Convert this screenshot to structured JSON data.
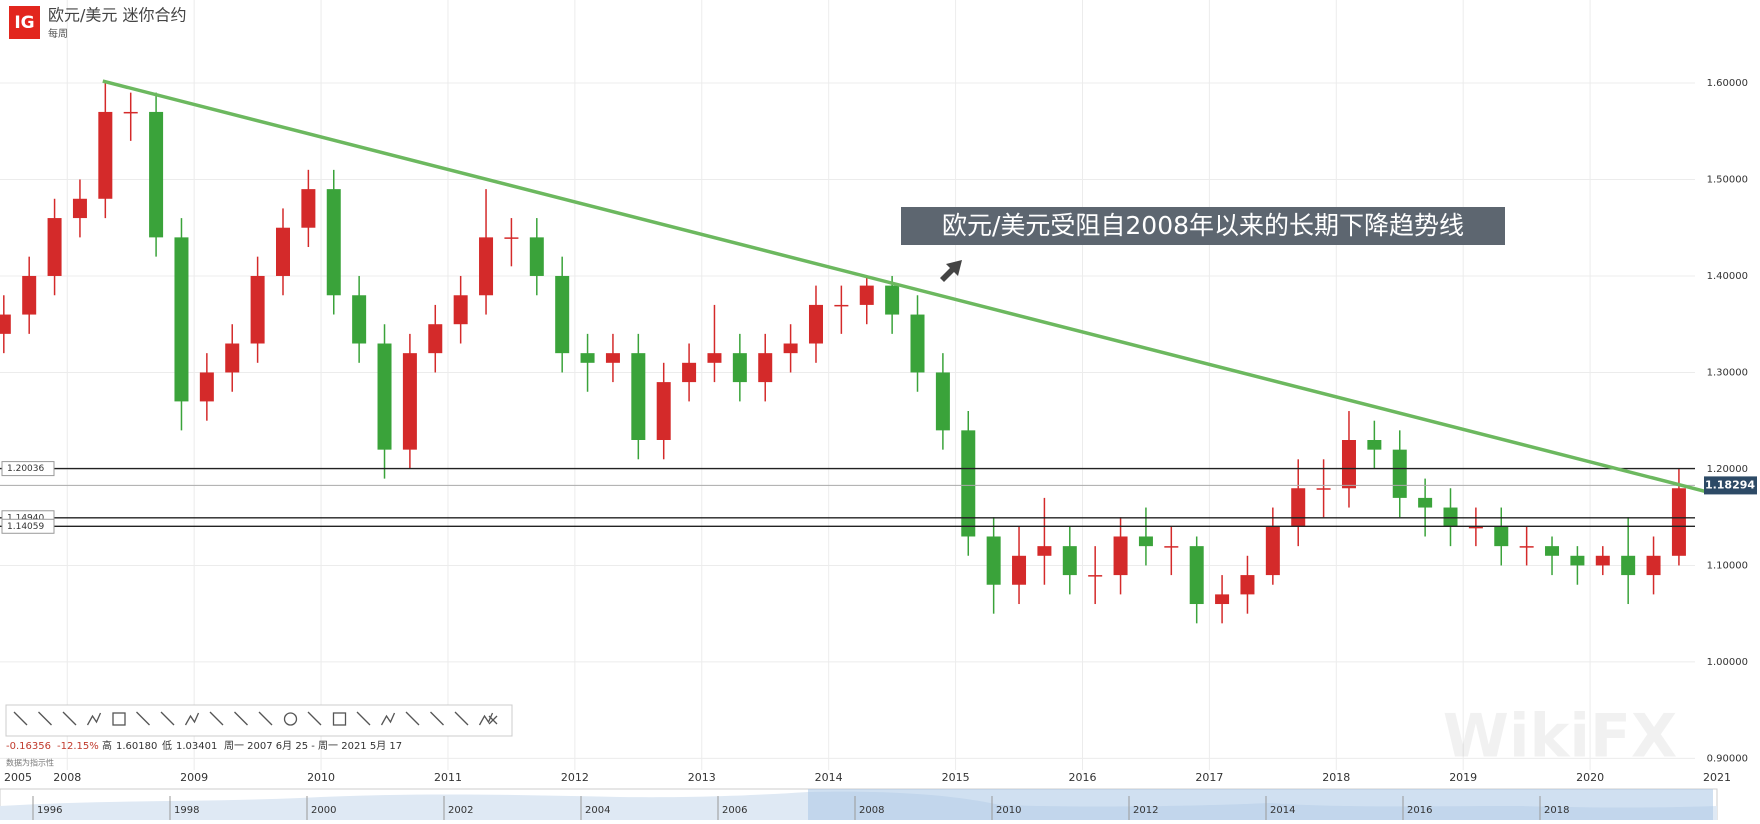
{
  "header": {
    "logo": "IG",
    "title": "欧元/美元 迷你合约",
    "interval": "每周"
  },
  "chart_data": {
    "type": "candlestick",
    "x": [
      2007.5,
      2007.7,
      2007.9,
      2008.1,
      2008.3,
      2008.5,
      2008.7,
      2008.9,
      2009.1,
      2009.3,
      2009.5,
      2009.7,
      2009.9,
      2010.1,
      2010.3,
      2010.5,
      2010.7,
      2010.9,
      2011.1,
      2011.3,
      2011.5,
      2011.7,
      2011.9,
      2012.1,
      2012.3,
      2012.5,
      2012.7,
      2012.9,
      2013.1,
      2013.3,
      2013.5,
      2013.7,
      2013.9,
      2014.1,
      2014.3,
      2014.5,
      2014.7,
      2014.9,
      2015.1,
      2015.3,
      2015.5,
      2015.7,
      2015.9,
      2016.1,
      2016.3,
      2016.5,
      2016.7,
      2016.9,
      2017.1,
      2017.3,
      2017.5,
      2017.7,
      2017.9,
      2018.1,
      2018.3,
      2018.5,
      2018.7,
      2018.9,
      2019.1,
      2019.3,
      2019.5,
      2019.7,
      2019.9,
      2020.1,
      2020.3,
      2020.5,
      2020.7
    ],
    "open": [
      1.34,
      1.36,
      1.4,
      1.46,
      1.48,
      1.57,
      1.57,
      1.44,
      1.27,
      1.3,
      1.33,
      1.4,
      1.45,
      1.49,
      1.38,
      1.33,
      1.22,
      1.32,
      1.35,
      1.38,
      1.44,
      1.44,
      1.4,
      1.32,
      1.31,
      1.32,
      1.23,
      1.29,
      1.31,
      1.32,
      1.29,
      1.32,
      1.33,
      1.37,
      1.37,
      1.39,
      1.36,
      1.3,
      1.24,
      1.13,
      1.08,
      1.11,
      1.12,
      1.09,
      1.09,
      1.13,
      1.12,
      1.12,
      1.06,
      1.07,
      1.09,
      1.14,
      1.18,
      1.18,
      1.23,
      1.22,
      1.17,
      1.16,
      1.14,
      1.14,
      1.12,
      1.12,
      1.11,
      1.1,
      1.11,
      1.09,
      1.11
    ],
    "high": [
      1.38,
      1.42,
      1.48,
      1.5,
      1.6,
      1.59,
      1.59,
      1.46,
      1.32,
      1.35,
      1.42,
      1.47,
      1.51,
      1.51,
      1.4,
      1.35,
      1.34,
      1.37,
      1.4,
      1.49,
      1.46,
      1.46,
      1.42,
      1.34,
      1.34,
      1.34,
      1.31,
      1.33,
      1.37,
      1.34,
      1.34,
      1.35,
      1.39,
      1.39,
      1.4,
      1.4,
      1.38,
      1.32,
      1.26,
      1.15,
      1.14,
      1.17,
      1.14,
      1.12,
      1.15,
      1.16,
      1.14,
      1.13,
      1.09,
      1.11,
      1.16,
      1.21,
      1.21,
      1.26,
      1.25,
      1.24,
      1.19,
      1.18,
      1.16,
      1.16,
      1.14,
      1.13,
      1.12,
      1.12,
      1.15,
      1.13,
      1.2
    ],
    "low": [
      1.32,
      1.34,
      1.38,
      1.44,
      1.46,
      1.54,
      1.42,
      1.24,
      1.25,
      1.28,
      1.31,
      1.38,
      1.43,
      1.36,
      1.31,
      1.19,
      1.2,
      1.3,
      1.33,
      1.36,
      1.41,
      1.38,
      1.3,
      1.28,
      1.29,
      1.21,
      1.21,
      1.27,
      1.29,
      1.27,
      1.27,
      1.3,
      1.31,
      1.34,
      1.35,
      1.34,
      1.28,
      1.22,
      1.11,
      1.05,
      1.06,
      1.08,
      1.07,
      1.06,
      1.07,
      1.1,
      1.09,
      1.04,
      1.04,
      1.05,
      1.08,
      1.12,
      1.15,
      1.16,
      1.2,
      1.15,
      1.13,
      1.12,
      1.12,
      1.1,
      1.1,
      1.09,
      1.08,
      1.09,
      1.06,
      1.07,
      1.1
    ],
    "close": [
      1.36,
      1.4,
      1.46,
      1.48,
      1.57,
      1.57,
      1.44,
      1.27,
      1.3,
      1.33,
      1.4,
      1.45,
      1.49,
      1.38,
      1.33,
      1.22,
      1.32,
      1.35,
      1.38,
      1.44,
      1.44,
      1.4,
      1.32,
      1.31,
      1.32,
      1.23,
      1.29,
      1.31,
      1.32,
      1.29,
      1.32,
      1.33,
      1.37,
      1.37,
      1.39,
      1.36,
      1.3,
      1.24,
      1.13,
      1.08,
      1.11,
      1.12,
      1.09,
      1.09,
      1.13,
      1.12,
      1.12,
      1.06,
      1.07,
      1.09,
      1.14,
      1.18,
      1.18,
      1.23,
      1.22,
      1.17,
      1.16,
      1.14,
      1.14,
      1.12,
      1.12,
      1.11,
      1.1,
      1.11,
      1.09,
      1.11,
      1.18
    ],
    "up_color": "#d42a2a",
    "down_color": "#3aa33a",
    "xlim": [
      2007.47,
      2021.0
    ],
    "xticks": [
      2008,
      2009,
      2010,
      2011,
      2012,
      2013,
      2014,
      2015,
      2016,
      2017,
      2018,
      2019,
      2020,
      2021
    ],
    "axis_start_label": "2005",
    "ylim": [
      0.888,
      1.686
    ],
    "yticks": [
      {
        "value": 0.9,
        "label": "0.90000"
      },
      {
        "value": 1.0,
        "label": "1.00000"
      },
      {
        "value": 1.1,
        "label": "1.10000"
      },
      {
        "value": 1.2,
        "label": "1.20000"
      },
      {
        "value": 1.3,
        "label": "1.30000"
      },
      {
        "value": 1.4,
        "label": "1.40000"
      },
      {
        "value": 1.5,
        "label": "1.50000"
      },
      {
        "value": 1.6,
        "label": "1.60000"
      }
    ],
    "grid": true,
    "levels": [
      1.20036,
      {
        "value": 1.1494,
        "label": "1.14940"
      },
      1.14059
    ],
    "current_price": 1.18294,
    "trendline": {
      "x": [
        2008.28,
        2020.9
      ],
      "y": [
        1.602,
        1.177
      ],
      "color": "#6cb85f"
    },
    "annotation": "欧元/美元受阻自2008年以来的长期下降趋势线"
  },
  "stats": {
    "change": "-0.16356",
    "change_pct": "-12.15%",
    "high_label": "高",
    "high": "1.60180",
    "low_label": "低",
    "low": "1.03401",
    "range": "周一 2007 6月 25 - 周一 2021 5月 17",
    "note": "数据为指示性"
  },
  "navigator": {
    "labels": [
      "1996",
      "1998",
      "2000",
      "2002",
      "2004",
      "2006",
      "2008",
      "2010",
      "2012",
      "2014",
      "2016",
      "2018"
    ]
  },
  "watermark": "WikiFX"
}
